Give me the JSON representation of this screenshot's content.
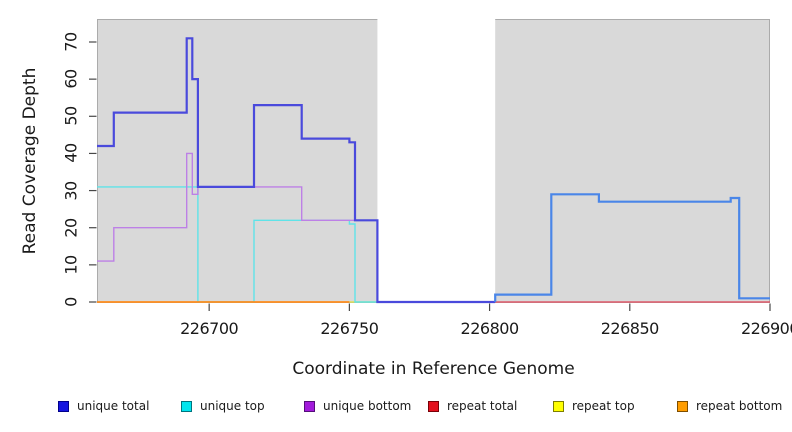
{
  "axes": {
    "xlabel": "Coordinate in Reference Genome",
    "ylabel": "Read Coverage Depth"
  },
  "chart_data": {
    "type": "line",
    "step": "after",
    "title": "",
    "xlabel": "Coordinate in Reference Genome",
    "ylabel": "Read Coverage Depth",
    "xlim": [
      226660,
      226900
    ],
    "ylim": [
      0,
      76
    ],
    "x_ticks": [
      226700,
      226750,
      226800,
      226850,
      226900
    ],
    "y_ticks": [
      0,
      10,
      20,
      30,
      40,
      50,
      60,
      70
    ],
    "grid": false,
    "panel_bg": "#d9d9d9",
    "panel_border": "#ababab",
    "tick_color": "#474747",
    "no_data_region": {
      "x0": 226760,
      "x1": 226802,
      "color": "#ffffff"
    },
    "legend_position": "bottom",
    "series": [
      {
        "name": "repeat top",
        "color": "#e0e055",
        "line_width": 1.4,
        "points": [
          [
            226750,
            0
          ],
          [
            226802,
            0
          ]
        ]
      },
      {
        "name": "repeat total",
        "color": "#e05a6b",
        "line_width": 1.5,
        "points": [
          [
            226802,
            0
          ],
          [
            226900,
            0
          ]
        ]
      },
      {
        "name": "unique top",
        "color": "#5fe3e8",
        "line_width": 1.4,
        "points": [
          [
            226660,
            31
          ],
          [
            226696,
            0
          ],
          [
            226716,
            22
          ],
          [
            226750,
            21
          ],
          [
            226752,
            0
          ],
          [
            226760,
            0
          ]
        ]
      },
      {
        "name": "unique bottom",
        "color": "#bd80e6",
        "line_width": 1.4,
        "points": [
          [
            226660,
            11
          ],
          [
            226666,
            20
          ],
          [
            226692,
            40
          ],
          [
            226694,
            29
          ],
          [
            226696,
            31
          ],
          [
            226733,
            22
          ],
          [
            226760,
            0
          ]
        ]
      },
      {
        "name": "repeat bottom",
        "color": "#ff8c1c",
        "line_width": 1.7,
        "points": [
          [
            226660,
            0
          ],
          [
            226750,
            0
          ]
        ]
      },
      {
        "name": "unique total",
        "color": "#4a4adc",
        "color_after_gap": "#4a86e8",
        "gap_x": 226802,
        "line_width": 2.2,
        "points": [
          [
            226660,
            42
          ],
          [
            226666,
            51
          ],
          [
            226692,
            71
          ],
          [
            226694,
            60
          ],
          [
            226696,
            31
          ],
          [
            226716,
            53
          ],
          [
            226733,
            44
          ],
          [
            226750,
            43
          ],
          [
            226752,
            22
          ],
          [
            226760,
            0
          ],
          [
            226802,
            2
          ],
          [
            226822,
            29
          ],
          [
            226839,
            27
          ],
          [
            226886,
            28
          ],
          [
            226889,
            1
          ],
          [
            226900,
            1
          ]
        ]
      }
    ]
  },
  "legend": {
    "items": [
      {
        "label": "unique total",
        "fill": "#1515e0",
        "border": "#00008b",
        "x": 58
      },
      {
        "label": "unique top",
        "fill": "#00e5ee",
        "border": "#00747e",
        "x": 181
      },
      {
        "label": "unique bottom",
        "fill": "#a21adb",
        "border": "#550e7a",
        "x": 304
      },
      {
        "label": "repeat total",
        "fill": "#e3101d",
        "border": "#790008",
        "x": 428
      },
      {
        "label": "repeat top",
        "fill": "#ffff00",
        "border": "#7e7e00",
        "x": 553
      },
      {
        "label": "repeat bottom",
        "fill": "#ff9d00",
        "border": "#7e4e00",
        "x": 677
      }
    ]
  }
}
